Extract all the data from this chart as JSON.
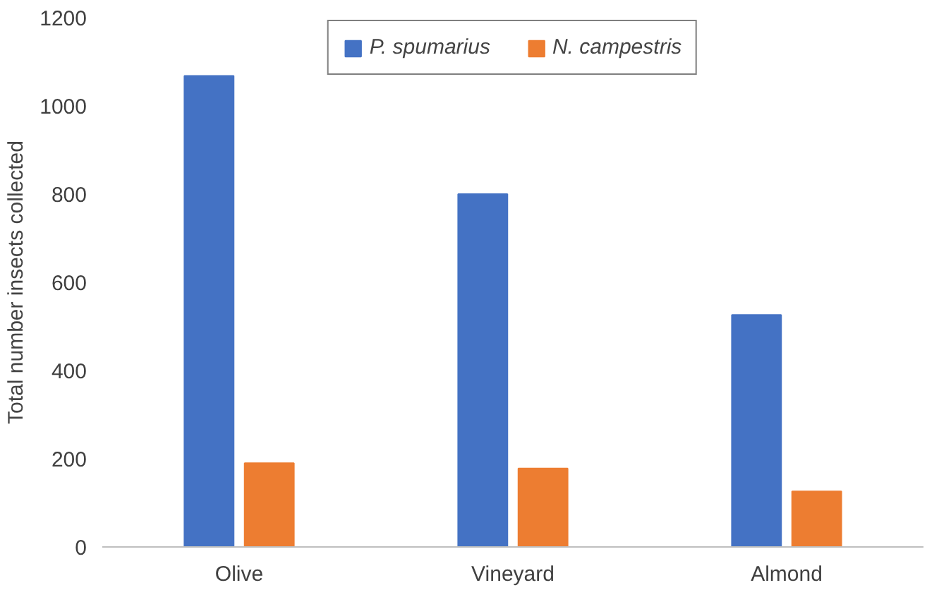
{
  "chart_data": {
    "type": "bar",
    "ylabel": "Total number insects collected",
    "categories": [
      "Olive",
      "Vineyard",
      "Almond"
    ],
    "series": [
      {
        "name": "P. spumarius",
        "color": "#4472c4",
        "values": [
          1068,
          800,
          526
        ]
      },
      {
        "name": "N. campestris",
        "color": "#ed7d31",
        "values": [
          190,
          178,
          126
        ]
      }
    ],
    "ylim": [
      0,
      1200
    ],
    "yticks": [
      0,
      200,
      400,
      600,
      800,
      1000,
      1200
    ],
    "grid": false,
    "legend": "top"
  }
}
